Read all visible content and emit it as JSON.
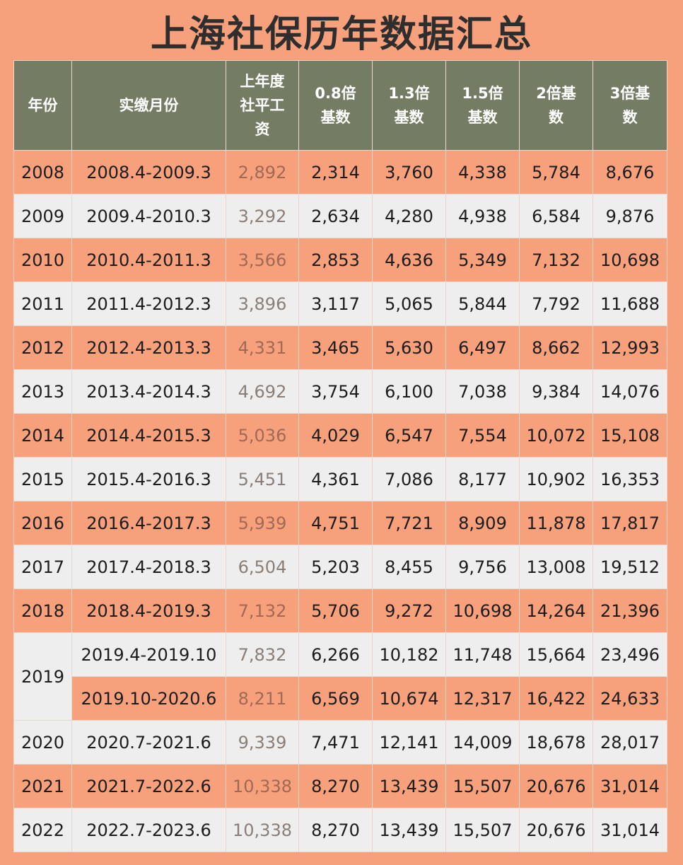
{
  "title": "上海社保历年数据汇总",
  "headers": [
    "年份",
    "实缴月份",
    "上年度社平工资",
    "0.8倍基数",
    "1.3倍基数",
    "1.5倍基数",
    "2倍基数",
    "3倍基数"
  ],
  "rows": [
    {
      "year": "2008",
      "period": "2008.4-2009.3",
      "avg": "2,892",
      "x08": "2,314",
      "x13": "3,760",
      "x15": "4,338",
      "x2": "5,784",
      "x3": "8,676"
    },
    {
      "year": "2009",
      "period": "2009.4-2010.3",
      "avg": "3,292",
      "x08": "2,634",
      "x13": "4,280",
      "x15": "4,938",
      "x2": "6,584",
      "x3": "9,876"
    },
    {
      "year": "2010",
      "period": "2010.4-2011.3",
      "avg": "3,566",
      "x08": "2,853",
      "x13": "4,636",
      "x15": "5,349",
      "x2": "7,132",
      "x3": "10,698"
    },
    {
      "year": "2011",
      "period": "2011.4-2012.3",
      "avg": "3,896",
      "x08": "3,117",
      "x13": "5,065",
      "x15": "5,844",
      "x2": "7,792",
      "x3": "11,688"
    },
    {
      "year": "2012",
      "period": "2012.4-2013.3",
      "avg": "4,331",
      "x08": "3,465",
      "x13": "5,630",
      "x15": "6,497",
      "x2": "8,662",
      "x3": "12,993"
    },
    {
      "year": "2013",
      "period": "2013.4-2014.3",
      "avg": "4,692",
      "x08": "3,754",
      "x13": "6,100",
      "x15": "7,038",
      "x2": "9,384",
      "x3": "14,076"
    },
    {
      "year": "2014",
      "period": "2014.4-2015.3",
      "avg": "5,036",
      "x08": "4,029",
      "x13": "6,547",
      "x15": "7,554",
      "x2": "10,072",
      "x3": "15,108"
    },
    {
      "year": "2015",
      "period": "2015.4-2016.3",
      "avg": "5,451",
      "x08": "4,361",
      "x13": "7,086",
      "x15": "8,177",
      "x2": "10,902",
      "x3": "16,353"
    },
    {
      "year": "2016",
      "period": "2016.4-2017.3",
      "avg": "5,939",
      "x08": "4,751",
      "x13": "7,721",
      "x15": "8,909",
      "x2": "11,878",
      "x3": "17,817"
    },
    {
      "year": "2017",
      "period": "2017.4-2018.3",
      "avg": "6,504",
      "x08": "5,203",
      "x13": "8,455",
      "x15": "9,756",
      "x2": "13,008",
      "x3": "19,512"
    },
    {
      "year": "2018",
      "period": "2018.4-2019.3",
      "avg": "7,132",
      "x08": "5,706",
      "x13": "9,272",
      "x15": "10,698",
      "x2": "14,264",
      "x3": "21,396"
    },
    {
      "year": "2019",
      "period": "2019.4-2019.10",
      "avg": "7,832",
      "x08": "6,266",
      "x13": "10,182",
      "x15": "11,748",
      "x2": "15,664",
      "x3": "23,496"
    },
    {
      "year": "2019",
      "period": "2019.10-2020.6",
      "avg": "8,211",
      "x08": "6,569",
      "x13": "10,674",
      "x15": "12,317",
      "x2": "16,422",
      "x3": "24,633"
    },
    {
      "year": "2020",
      "period": "2020.7-2021.6",
      "avg": "9,339",
      "x08": "7,471",
      "x13": "12,141",
      "x15": "14,009",
      "x2": "18,678",
      "x3": "28,017"
    },
    {
      "year": "2021",
      "period": "2021.7-2022.6",
      "avg": "10,338",
      "x08": "8,270",
      "x13": "13,439",
      "x15": "15,507",
      "x2": "20,676",
      "x3": "31,014"
    },
    {
      "year": "2022",
      "period": "2022.7-2023.6",
      "avg": "10,338",
      "x08": "8,270",
      "x13": "13,439",
      "x15": "15,507",
      "x2": "20,676",
      "x3": "31,014"
    }
  ],
  "colors": {
    "background": "#f6a07c",
    "header_bg": "#747d64",
    "light_row": "#eeeeee",
    "orange_row": "#f6a07c"
  }
}
